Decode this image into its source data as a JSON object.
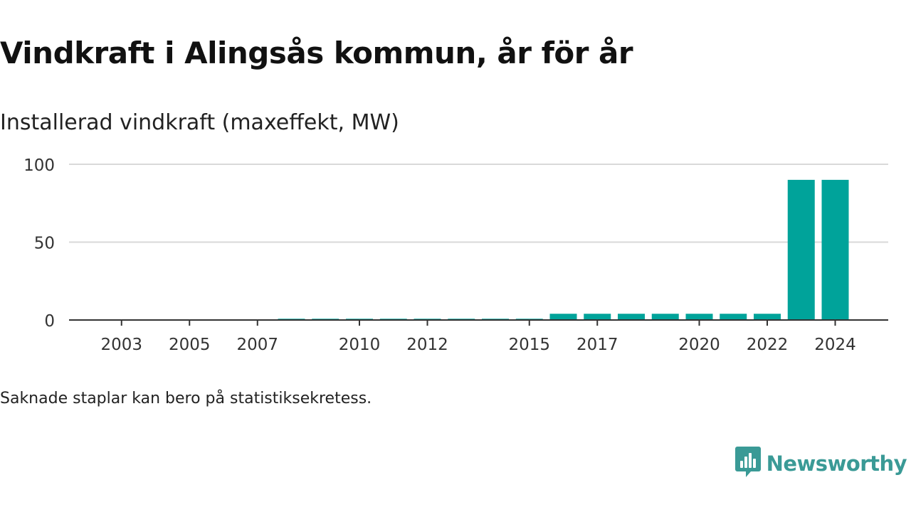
{
  "header": {
    "title": "Vindkraft i Alingsås kommun, år för år",
    "subtitle": "Installerad vindkraft (maxeffekt, MW)"
  },
  "footnote": "Saknade staplar kan bero på statistiksekretess.",
  "brand": {
    "name": "Newsworthy",
    "icon": "newsworthy-logo-icon",
    "color": "#3a9a96"
  },
  "chart_data": {
    "type": "bar",
    "title": "",
    "xlabel": "",
    "ylabel": "",
    "ylim": [
      0,
      100
    ],
    "yticks": [
      0,
      50,
      100
    ],
    "grid": true,
    "bar_color": "#00a39a",
    "categories": [
      "2002",
      "2003",
      "2004",
      "2005",
      "2006",
      "2007",
      "2008",
      "2009",
      "2010",
      "2011",
      "2012",
      "2013",
      "2014",
      "2015",
      "2016",
      "2017",
      "2018",
      "2019",
      "2020",
      "2021",
      "2022",
      "2023",
      "2024"
    ],
    "xtick_labels": [
      "2003",
      "2005",
      "2007",
      "2010",
      "2012",
      "2015",
      "2017",
      "2020",
      "2022",
      "2024"
    ],
    "values": [
      0,
      0,
      0,
      0,
      0,
      0,
      0.8,
      0.8,
      0.8,
      0.8,
      0.8,
      0.8,
      0.8,
      0.8,
      4,
      4,
      4,
      4,
      4,
      4,
      4,
      90,
      90
    ]
  }
}
